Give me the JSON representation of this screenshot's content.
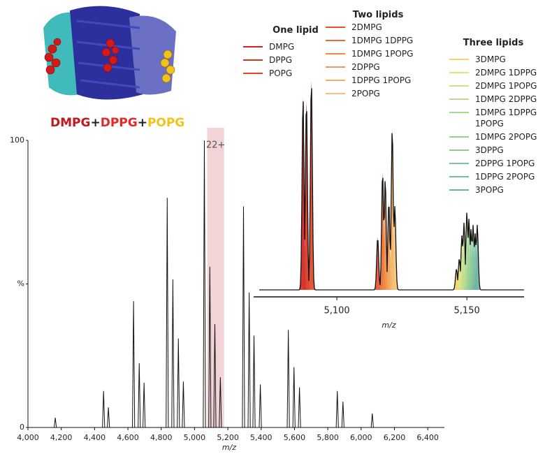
{
  "header": {
    "parts": [
      {
        "text": "DMPG",
        "color": "#c4161c"
      },
      {
        "text": "+",
        "color": "#222222"
      },
      {
        "text": "DPPG",
        "color": "#e8262a"
      },
      {
        "text": "+",
        "color": "#222222"
      },
      {
        "text": "POPG",
        "color": "#f2c21a"
      }
    ]
  },
  "chart_data": [
    {
      "type": "stem",
      "x_label": "m/z",
      "color": "#111111",
      "xlim": [
        4000,
        6500
      ],
      "ylim": [
        0,
        100
      ],
      "xticks": [
        {
          "value": 4000,
          "label": "4,000"
        },
        {
          "value": 4200,
          "label": "4,200"
        },
        {
          "value": 4400,
          "label": "4,400"
        },
        {
          "value": 4600,
          "label": "4,600"
        },
        {
          "value": 4800,
          "label": "4,800"
        },
        {
          "value": 5000,
          "label": "5,000"
        },
        {
          "value": 5200,
          "label": "5,200"
        },
        {
          "value": 5400,
          "label": "5,400"
        },
        {
          "value": 5600,
          "label": "5,600"
        },
        {
          "value": 5800,
          "label": "5,800"
        },
        {
          "value": 6000,
          "label": "6,000"
        },
        {
          "value": 6200,
          "label": "6,200"
        },
        {
          "value": 6400,
          "label": "6,400"
        }
      ],
      "yticks": [
        0,
        {
          "value": 50,
          "label": "%"
        },
        100
      ],
      "highlight": {
        "range": [
          5076,
          5177
        ],
        "label": "22+",
        "color": "#eec4c8"
      },
      "x": [
        4164,
        4454,
        4483,
        4634,
        4668,
        4697,
        4836,
        4870,
        4903,
        4933,
        5059,
        5092,
        5122,
        5155,
        5294,
        5328,
        5357,
        5395,
        5563,
        5597,
        5630,
        5857,
        5891,
        6067
      ],
      "values": [
        3.4,
        12.7,
        7,
        44,
        22.4,
        15.6,
        80,
        51.6,
        31,
        16,
        100,
        56,
        36,
        17.5,
        77,
        47,
        32,
        15,
        34,
        21,
        14,
        12.7,
        9,
        4.9
      ]
    },
    {
      "type": "peaks",
      "x_label": "m/z",
      "xlim": [
        5068,
        5172
      ],
      "ylim": [
        0,
        100
      ],
      "xticks": [
        {
          "value": 5100,
          "label": "5,100"
        },
        {
          "value": 5150,
          "label": "5,150"
        }
      ],
      "groups": [
        {
          "title": "One lipid",
          "series": [
            {
              "name": "DMPG",
              "color": "#d42020",
              "x": [
                5087
              ],
              "values": [
                92
              ]
            },
            {
              "name": "DPPG",
              "color": "#d8321e",
              "x": [
                5088.3
              ],
              "values": [
                90
              ]
            },
            {
              "name": "POPG",
              "color": "#e04424",
              "x": [
                5090.2
              ],
              "values": [
                100
              ]
            }
          ]
        },
        {
          "title": "Two lipids",
          "series": [
            {
              "name": "2DMPG",
              "color": "#e8502a",
              "x": [
                5115.7
              ],
              "values": [
                25
              ]
            },
            {
              "name": "1DMPG 1DPPG",
              "color": "#ec6a30",
              "x": [
                5117.6
              ],
              "values": [
                56
              ]
            },
            {
              "name": "1DMPG 1POPG",
              "color": "#f08840",
              "x": [
                5118.6
              ],
              "values": [
                53
              ]
            },
            {
              "name": "2DPPG",
              "color": "#f29e50",
              "x": [
                5120
              ],
              "values": [
                42
              ]
            },
            {
              "name": "1DPPG 1POPG",
              "color": "#f4b060",
              "x": [
                5121.3
              ],
              "values": [
                77
              ]
            },
            {
              "name": "2POPG",
              "color": "#f6c274",
              "x": [
                5122.3
              ],
              "values": [
                40
              ]
            }
          ]
        },
        {
          "title": "Three lipids",
          "series": [
            {
              "name": "3DMPG",
              "color": "#f5d464",
              "x": [
                5146
              ],
              "values": [
                10
              ]
            },
            {
              "name": "2DMPG 1DPPG",
              "color": "#e4e07a",
              "x": [
                5147.1
              ],
              "values": [
                15
              ]
            },
            {
              "name": "2DMPG 1POPG",
              "color": "#d0e08a",
              "x": [
                5148.1
              ],
              "values": [
                26
              ]
            },
            {
              "name": "1DMPG 2DPPG",
              "color": "#bcdc8e",
              "x": [
                5148.9
              ],
              "values": [
                32
              ]
            },
            {
              "name": "1DMPG 1DPPG 1POPG",
              "color": "#aad690",
              "x": [
                5150
              ],
              "values": [
                37
              ]
            },
            {
              "name": "1DMPG 2POPG",
              "color": "#9ad092",
              "x": [
                5150.8
              ],
              "values": [
                34
              ]
            },
            {
              "name": "3DPPG",
              "color": "#8cca96",
              "x": [
                5151.6
              ],
              "values": [
                29
              ]
            },
            {
              "name": "2DPPG 1POPG",
              "color": "#80c29a",
              "x": [
                5152.4
              ],
              "values": [
                31
              ]
            },
            {
              "name": "1DPPG 2POPG",
              "color": "#76baa0",
              "x": [
                5153.2
              ],
              "values": [
                27
              ]
            },
            {
              "name": "3POPG",
              "color": "#6cb2a2",
              "x": [
                5154
              ],
              "values": [
                31
              ]
            }
          ]
        }
      ]
    }
  ]
}
